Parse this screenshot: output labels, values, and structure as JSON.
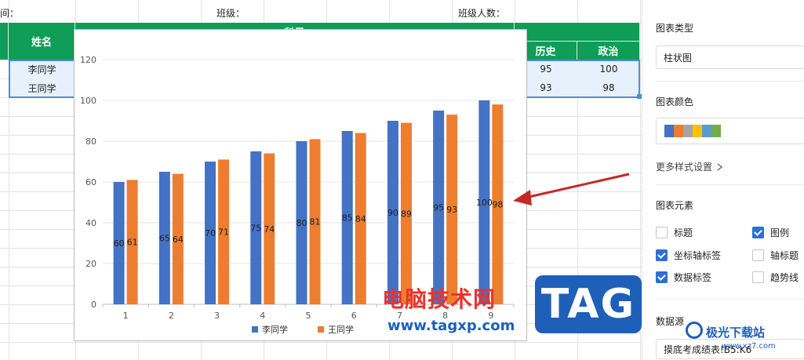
{
  "sheet": {
    "top_labels": [
      "间：",
      "班级：",
      "班级人数："
    ],
    "headers": {
      "name": "姓名",
      "subjects_group": "科目",
      "history": "历史",
      "politics": "政治"
    },
    "rows": [
      {
        "name": "李同学",
        "history": "95",
        "politics": "100"
      },
      {
        "name": "王同学",
        "history": "93",
        "politics": "98"
      }
    ]
  },
  "chart_data": {
    "type": "bar",
    "categories": [
      "1",
      "2",
      "3",
      "4",
      "5",
      "6",
      "7",
      "8",
      "9"
    ],
    "series": [
      {
        "name": "李同学",
        "color": "#4472c4",
        "values": [
          60,
          65,
          70,
          75,
          80,
          85,
          90,
          95,
          100
        ]
      },
      {
        "name": "王同学",
        "color": "#ed7d31",
        "values": [
          61,
          64,
          71,
          74,
          81,
          84,
          89,
          93,
          98
        ]
      }
    ],
    "yticks": [
      "0",
      "20",
      "40",
      "60",
      "80",
      "100",
      "120"
    ],
    "ylim": [
      0,
      120
    ],
    "grid": true,
    "data_labels": true,
    "legend": "bottom"
  },
  "side_panel": {
    "chart_type_title": "图表类型",
    "chart_type_value": "柱状图",
    "chart_color_title": "图表颜色",
    "palette": [
      "#4472c4",
      "#ed7d31",
      "#a5a5a5",
      "#ffc000",
      "#5b9bd5",
      "#70ad47"
    ],
    "more_style": "更多样式设置",
    "elements_title": "图表元素",
    "elements": [
      {
        "label": "标题",
        "checked": false
      },
      {
        "label": "图例",
        "checked": true
      },
      {
        "label": "坐标轴标签",
        "checked": true
      },
      {
        "label": "轴标题",
        "checked": false
      },
      {
        "label": "数据标签",
        "checked": true
      },
      {
        "label": "趋势线",
        "checked": false
      }
    ],
    "datasource_title": "数据源",
    "datasource_value": "摸底考成绩表!B5:K6"
  },
  "watermark": {
    "cn_text": "电脑技术网",
    "url": "www.tagxp.com",
    "tag": "TAG",
    "site_name": "极光下载站",
    "site_url": "www.xz7.com"
  }
}
